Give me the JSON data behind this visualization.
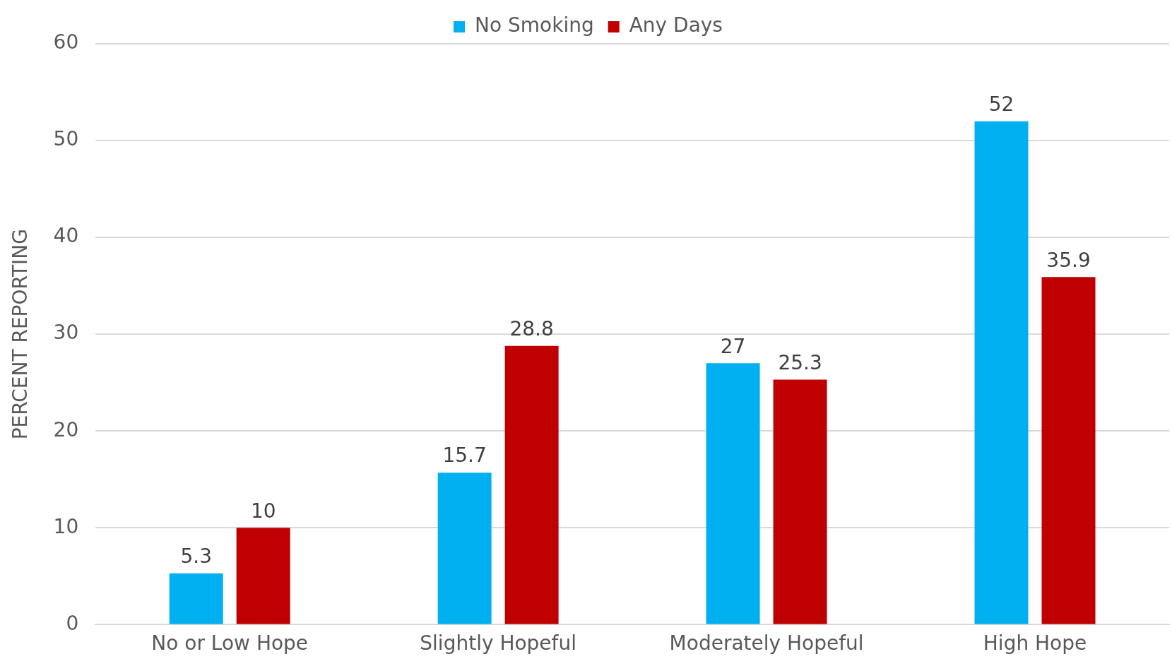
{
  "chart_data": {
    "type": "bar",
    "categories": [
      "No or Low Hope",
      "Slightly Hopeful",
      "Moderately Hopeful",
      "High Hope"
    ],
    "series": [
      {
        "name": "No Smoking",
        "color": "#00b0f0",
        "values": [
          5.3,
          15.7,
          27,
          52
        ]
      },
      {
        "name": "Any Days",
        "color": "#c00000",
        "values": [
          10,
          28.8,
          25.3,
          35.9
        ]
      }
    ],
    "ylabel": "PERCENT REPORTING",
    "ylim": [
      0,
      60
    ],
    "yticks": [
      0,
      10,
      20,
      30,
      40,
      50,
      60
    ],
    "grid": "y",
    "legend": "top",
    "data_labels": true
  }
}
